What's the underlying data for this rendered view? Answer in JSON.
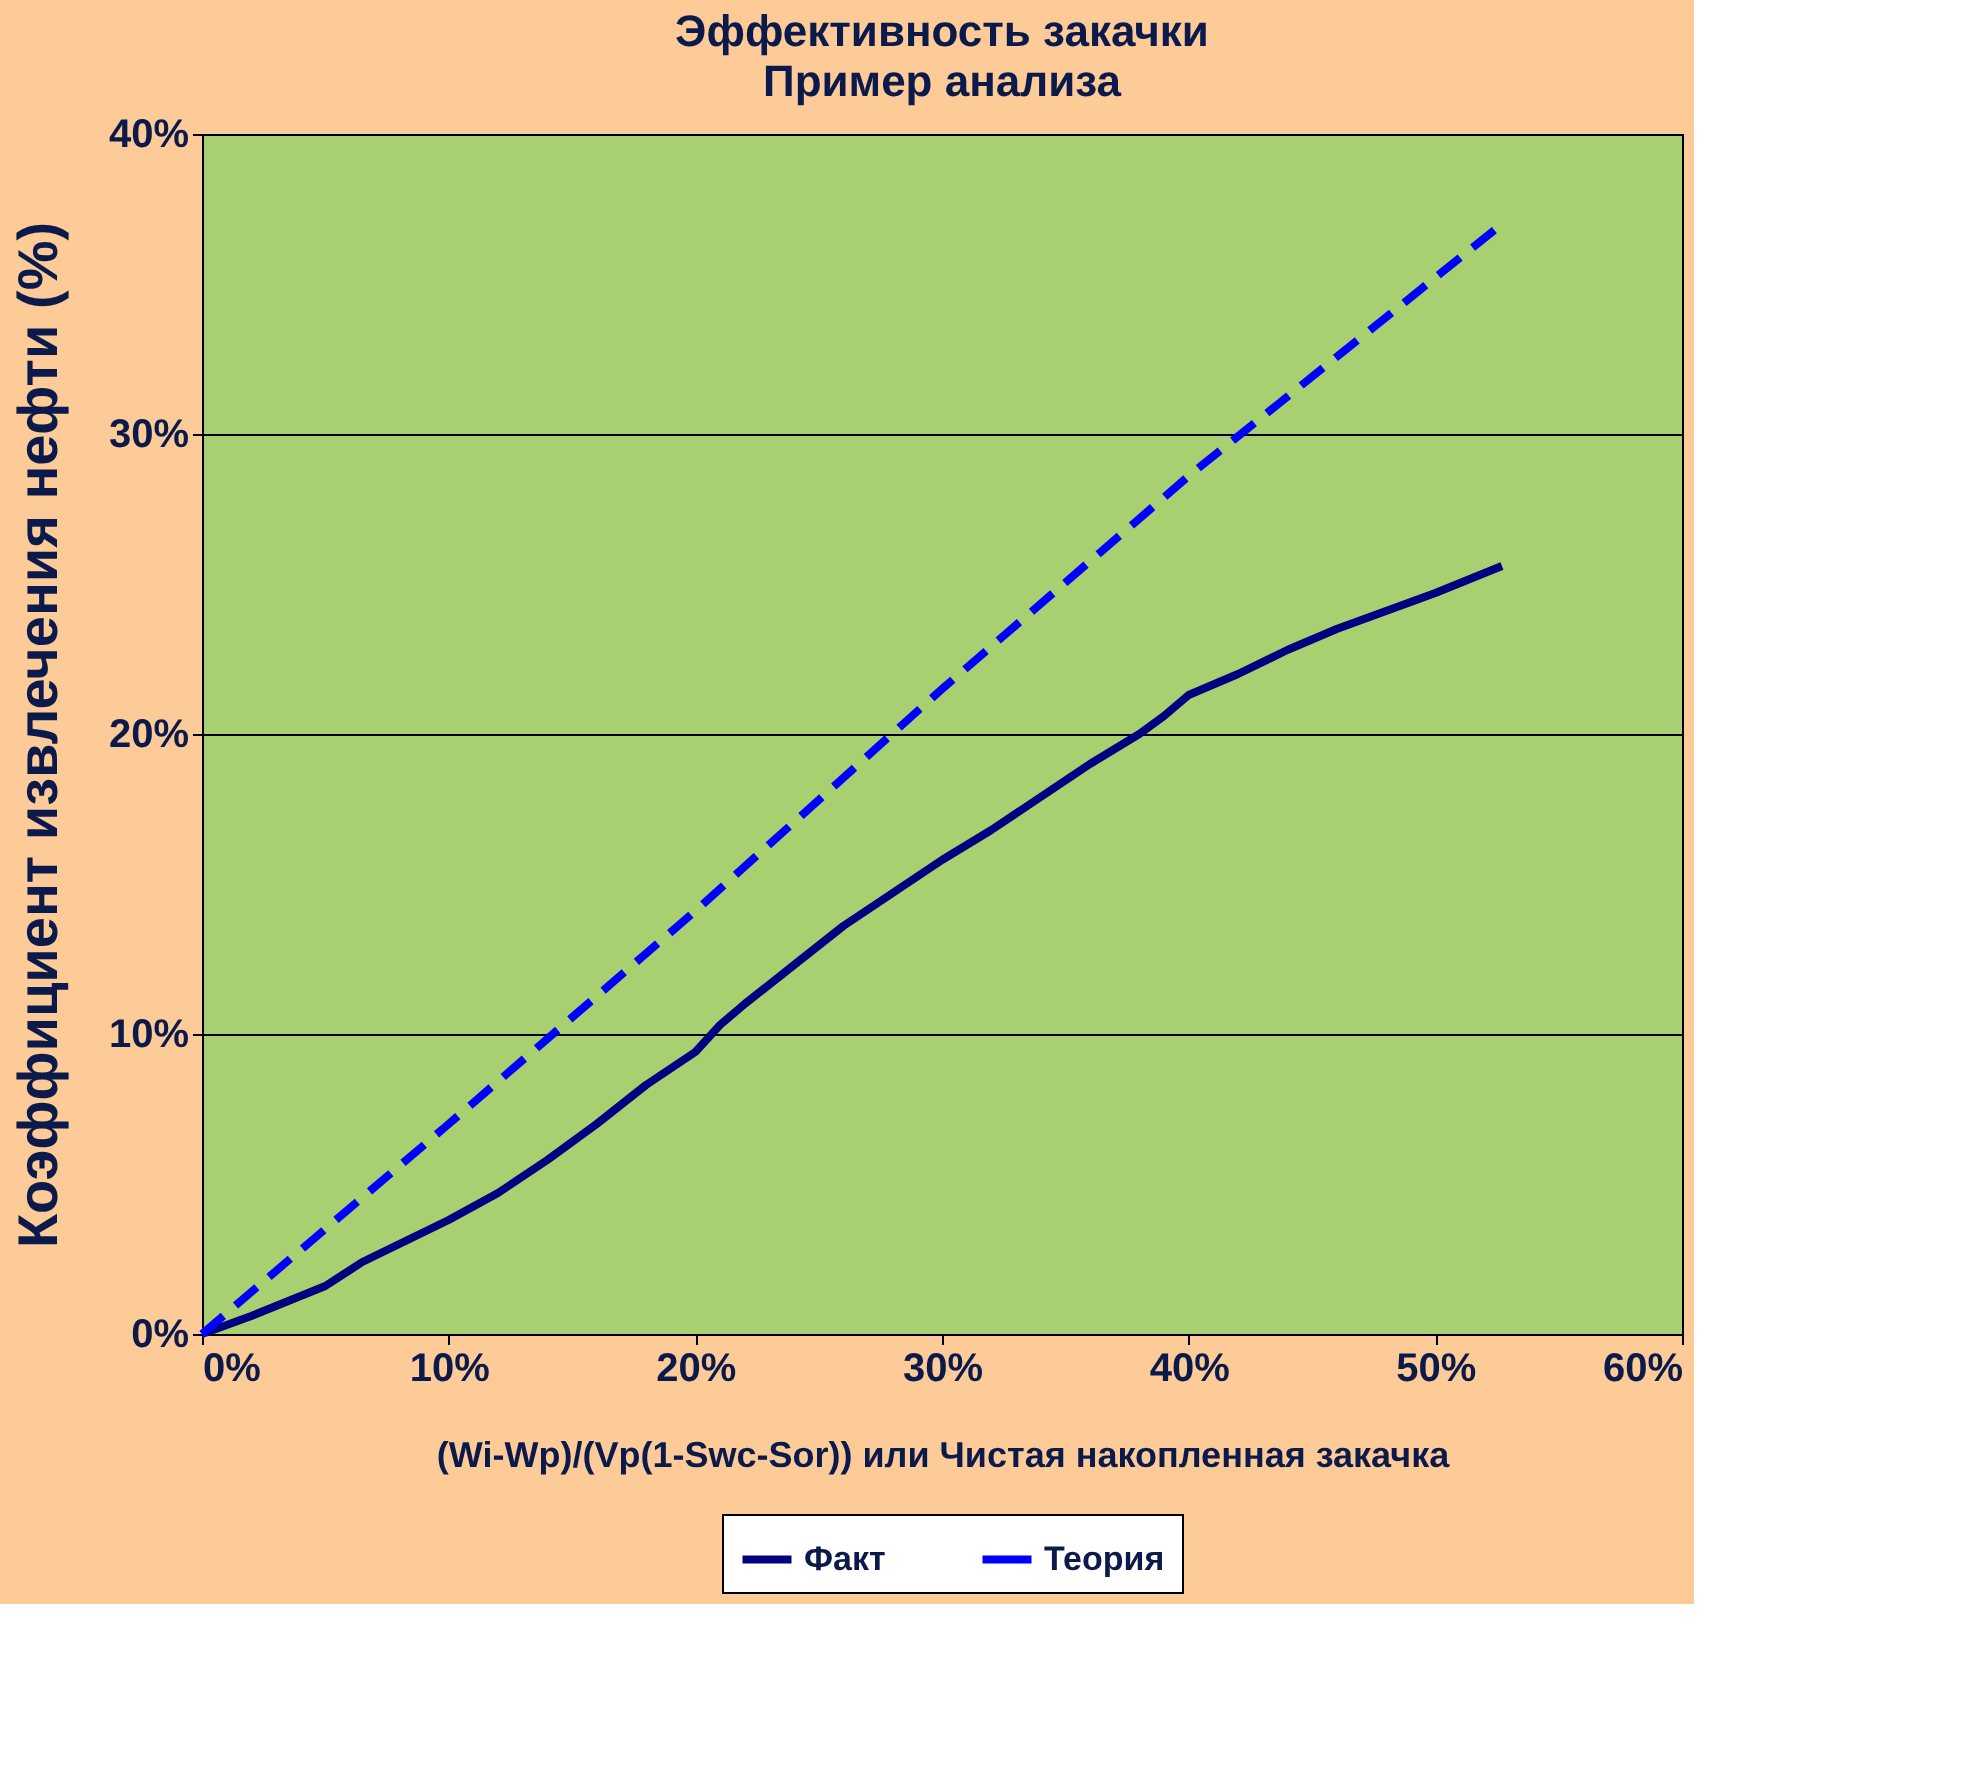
{
  "chart_data": {
    "type": "line",
    "title": "Эффективность закачки",
    "subtitle": "Пример анализа",
    "xlabel": "(Wi-Wp)/(Vp(1-Swc-Sor))  или  Чистая накопленная закачка",
    "ylabel": "Коэффициент извлечения нефти (%)",
    "xlim": [
      0,
      60
    ],
    "ylim": [
      0,
      40
    ],
    "xticks": [
      {
        "value": 0,
        "label": "0%"
      },
      {
        "value": 10,
        "label": "10%"
      },
      {
        "value": 20,
        "label": "20%"
      },
      {
        "value": 30,
        "label": "30%"
      },
      {
        "value": 40,
        "label": "40%"
      },
      {
        "value": 50,
        "label": "50%"
      },
      {
        "value": 60,
        "label": "60%"
      }
    ],
    "yticks": [
      {
        "value": 0,
        "label": "0%"
      },
      {
        "value": 10,
        "label": "10%"
      },
      {
        "value": 20,
        "label": "20%"
      },
      {
        "value": 30,
        "label": "30%"
      },
      {
        "value": 40,
        "label": "40%"
      }
    ],
    "grid": "y",
    "legend": "bottom",
    "series": [
      {
        "name": "Факт",
        "color": "#000080",
        "line_style": "solid",
        "x": [
          0,
          2,
          5,
          6.5,
          8,
          10,
          12,
          14,
          16,
          18,
          20,
          21,
          22,
          24,
          26,
          28,
          30,
          32,
          34,
          36,
          38,
          39,
          40,
          42,
          44,
          46,
          48,
          50,
          52.7
        ],
        "values": [
          0,
          0.6,
          1.6,
          2.4,
          3.0,
          3.8,
          4.7,
          5.8,
          7.0,
          8.3,
          9.4,
          10.3,
          11.0,
          12.3,
          13.6,
          14.7,
          15.8,
          16.8,
          17.9,
          19.0,
          20.0,
          20.6,
          21.3,
          22.0,
          22.8,
          23.5,
          24.1,
          24.7,
          25.6
        ]
      },
      {
        "name": "Теория",
        "color": "#0000ff",
        "line_style": "dashed",
        "x": [
          0,
          10,
          20,
          30,
          40,
          52.7
        ],
        "values": [
          0,
          7.0,
          14.1,
          21.5,
          28.6,
          37.0
        ]
      }
    ]
  }
}
